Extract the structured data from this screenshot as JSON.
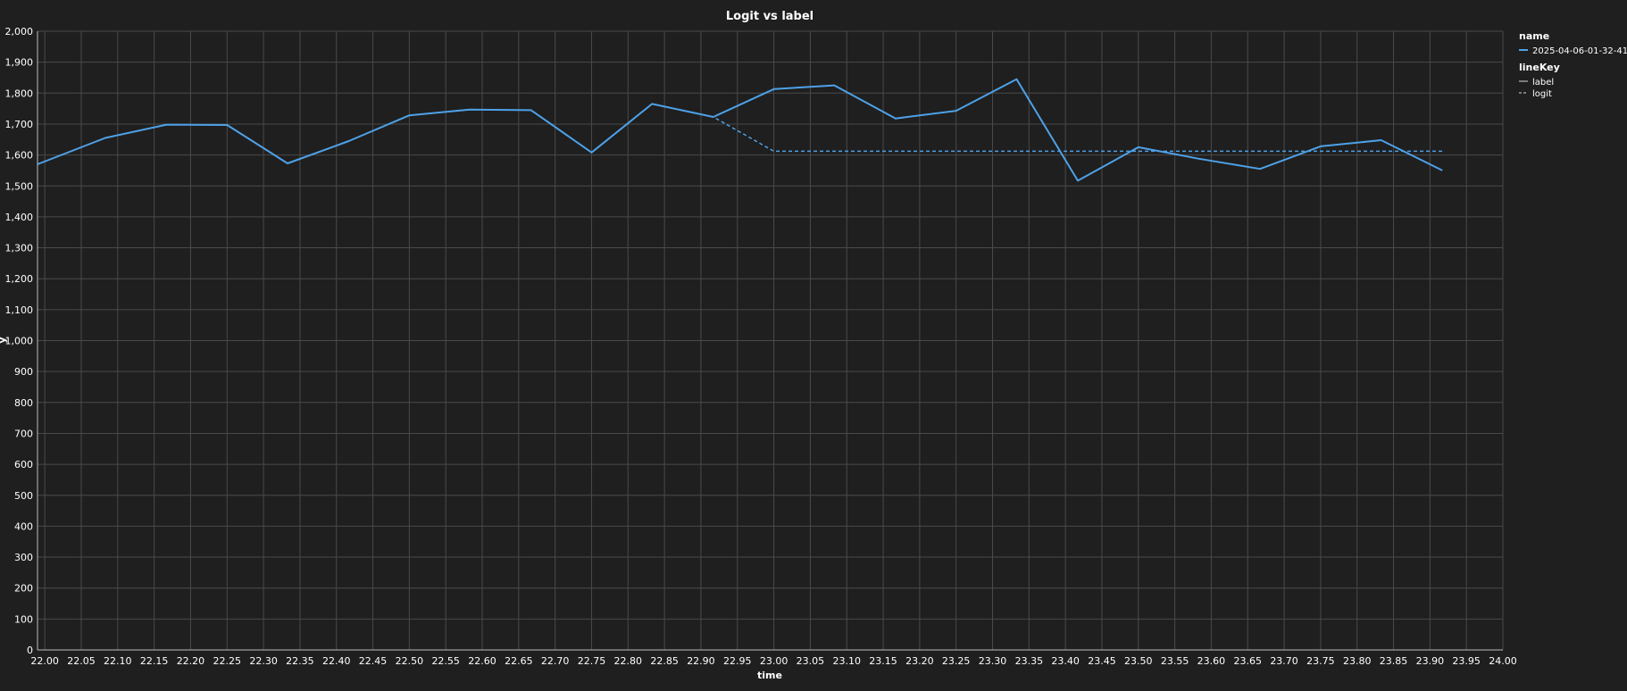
{
  "chart_data": {
    "type": "line",
    "title": "Logit vs label",
    "xlabel": "time",
    "ylabel": "y",
    "xlim": [
      21.99,
      24.0
    ],
    "ylim": [
      0,
      2000
    ],
    "x_ticks": [
      "22.00",
      "22.05",
      "22.10",
      "22.15",
      "22.20",
      "22.25",
      "22.30",
      "22.35",
      "22.40",
      "22.45",
      "22.50",
      "22.55",
      "22.60",
      "22.65",
      "22.70",
      "22.75",
      "22.80",
      "22.85",
      "22.90",
      "22.95",
      "23.00",
      "23.05",
      "23.10",
      "23.15",
      "23.20",
      "23.25",
      "23.30",
      "23.35",
      "23.40",
      "23.45",
      "23.50",
      "23.55",
      "23.60",
      "23.65",
      "23.70",
      "23.75",
      "23.80",
      "23.85",
      "23.90",
      "23.95",
      "24.00"
    ],
    "y_ticks": [
      "0",
      "100",
      "200",
      "300",
      "400",
      "500",
      "600",
      "700",
      "800",
      "900",
      "1,000",
      "1,100",
      "1,200",
      "1,300",
      "1,400",
      "1,500",
      "1,600",
      "1,700",
      "1,800",
      "1,900",
      "2,000"
    ],
    "grid": true,
    "line_color": "#4ea1e8",
    "legend": {
      "position": "right",
      "name_title": "name",
      "name_entries": [
        "2025-04-06-01-32-41"
      ],
      "linekey_title": "lineKey",
      "linekey_entries": [
        {
          "label": "label",
          "dash": "solid"
        },
        {
          "label": "logit",
          "dash": "dashed"
        }
      ]
    },
    "series": [
      {
        "name": "label",
        "dash": "solid",
        "x": [
          21.99,
          22.083,
          22.167,
          22.25,
          22.333,
          22.417,
          22.5,
          22.583,
          22.667,
          22.75,
          22.833,
          22.917,
          23.0,
          23.083,
          23.167,
          23.25,
          23.333,
          23.417,
          23.5,
          23.583,
          23.667,
          23.75,
          23.833,
          23.917
        ],
        "values": [
          1570,
          1655,
          1698,
          1697,
          1573,
          1645,
          1728,
          1747,
          1745,
          1608,
          1765,
          1723,
          1813,
          1825,
          1718,
          1743,
          1845,
          1517,
          1625,
          1588,
          1555,
          1628,
          1648,
          1550
        ]
      },
      {
        "name": "logit",
        "dash": "dashed",
        "x": [
          21.99,
          22.083,
          22.167,
          22.25,
          22.333,
          22.417,
          22.5,
          22.583,
          22.667,
          22.75,
          22.833,
          22.917,
          23.0,
          23.083,
          23.167,
          23.25,
          23.333,
          23.417,
          23.5,
          23.583,
          23.667,
          23.75,
          23.833,
          23.917
        ],
        "values": [
          1570,
          1655,
          1698,
          1697,
          1573,
          1645,
          1728,
          1747,
          1745,
          1608,
          1765,
          1723,
          1612,
          1612,
          1612,
          1612,
          1612,
          1612,
          1612,
          1612,
          1612,
          1612,
          1612,
          1612
        ]
      }
    ]
  }
}
